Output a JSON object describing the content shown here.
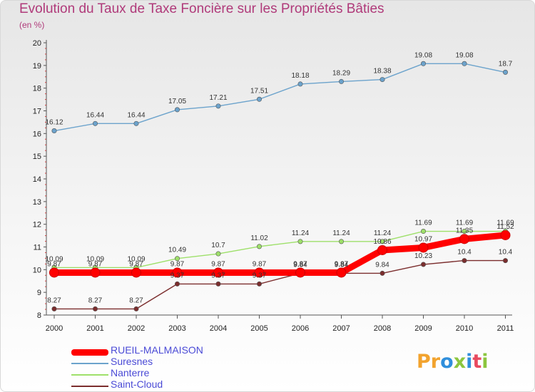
{
  "header": {
    "title": "Evolution du Taux de Taxe Foncière sur les Propriétés Bâties",
    "subtitle": "(en %)"
  },
  "logo": {
    "text": [
      "P",
      "r",
      "o",
      "x",
      "i",
      "t",
      "i"
    ],
    "colors": [
      "#f2a32e",
      "#f2a32e",
      "#2f8fdc",
      "#8cc63f",
      "#2f8fdc",
      "#e84a5f",
      "#8cc63f"
    ]
  },
  "chart_data": {
    "type": "line",
    "title": "Evolution du Taux de Taxe Foncière sur les Propriétés Bâties",
    "ylabel": "(en %)",
    "x": [
      "2000",
      "2001",
      "2002",
      "2003",
      "2004",
      "2005",
      "2006",
      "2007",
      "2008",
      "2009",
      "2010",
      "2011"
    ],
    "ylim": [
      8,
      20
    ],
    "yticks": [
      "8",
      "9",
      "10",
      "11",
      "12",
      "13",
      "14",
      "15",
      "16",
      "17",
      "18",
      "19",
      "20"
    ],
    "grid": false,
    "legend_position": "bottom-left",
    "series": [
      {
        "name": "RUEIL-MALMAISON",
        "color": "#ff0000",
        "values": [
          9.87,
          9.87,
          9.87,
          9.87,
          9.87,
          9.87,
          9.87,
          9.87,
          10.86,
          10.97,
          11.35,
          11.52
        ],
        "labels": [
          "9.87",
          "9.87",
          "9.87",
          "9.87",
          "9.87",
          "9.87",
          "9.87",
          "9.87",
          "10.86",
          "10.97",
          "11.35",
          "11.52"
        ]
      },
      {
        "name": "Suresnes",
        "color": "#6ca3cc",
        "values": [
          16.12,
          16.44,
          16.44,
          17.05,
          17.21,
          17.51,
          18.18,
          18.29,
          18.38,
          19.08,
          19.08,
          18.7
        ],
        "labels": [
          "16.12",
          "16.44",
          "16.44",
          "17.05",
          "17.21",
          "17.51",
          "18.18",
          "18.29",
          "18.38",
          "19.08",
          "19.08",
          "18.7"
        ]
      },
      {
        "name": "Nanterre",
        "color": "#9ee06a",
        "values": [
          10.09,
          10.09,
          10.09,
          10.49,
          10.7,
          11.02,
          11.24,
          11.24,
          11.24,
          11.69,
          11.69,
          11.69
        ],
        "labels": [
          "10.09",
          "10.09",
          "10.09",
          "10.49",
          "10.7",
          "11.02",
          "11.24",
          "11.24",
          "11.24",
          "11.69",
          "11.69",
          "11.69"
        ]
      },
      {
        "name": "Saint-Cloud",
        "color": "#7b2d2d",
        "values": [
          8.27,
          8.27,
          8.27,
          9.37,
          9.37,
          9.37,
          9.84,
          9.84,
          9.84,
          10.23,
          10.4,
          10.4
        ],
        "labels": [
          "8.27",
          "8.27",
          "8.27",
          "9.37",
          "9.37",
          "9.37",
          "9.84",
          "9.84",
          "9.84",
          "10.23",
          "10.4",
          "10.4"
        ]
      }
    ]
  }
}
